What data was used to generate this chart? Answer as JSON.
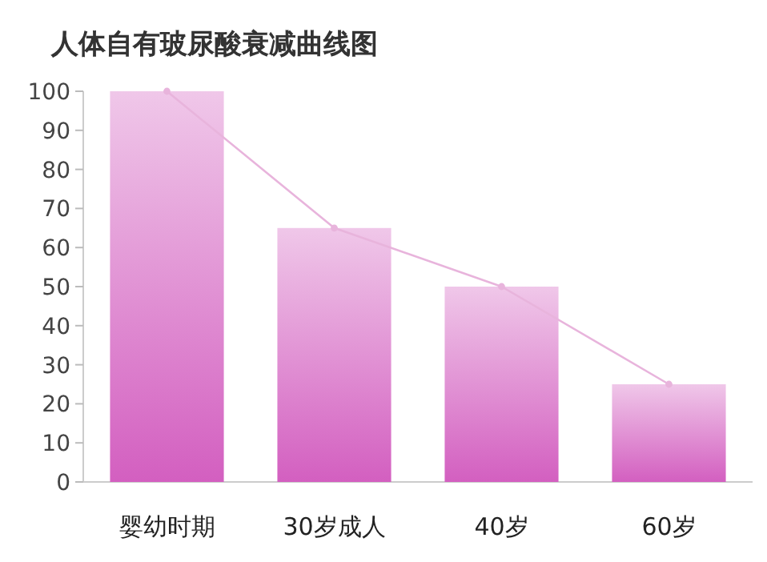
{
  "chart_data": {
    "type": "bar",
    "title": "人体自有玻尿酸衰减曲线图",
    "categories": [
      "婴幼时期",
      "30岁成人",
      "40岁",
      "60岁"
    ],
    "series": [
      {
        "color": "#d35fc0",
        "values": [
          100,
          65,
          50,
          25
        ]
      },
      {
        "type": "line",
        "color": "#e8b4dc",
        "values": [
          100,
          65,
          50,
          25
        ],
        "marker": "circle"
      }
    ],
    "ylim": [
      0,
      100
    ],
    "yticks": [
      0,
      10,
      20,
      30,
      40,
      50,
      60,
      70,
      80,
      90,
      100
    ]
  }
}
